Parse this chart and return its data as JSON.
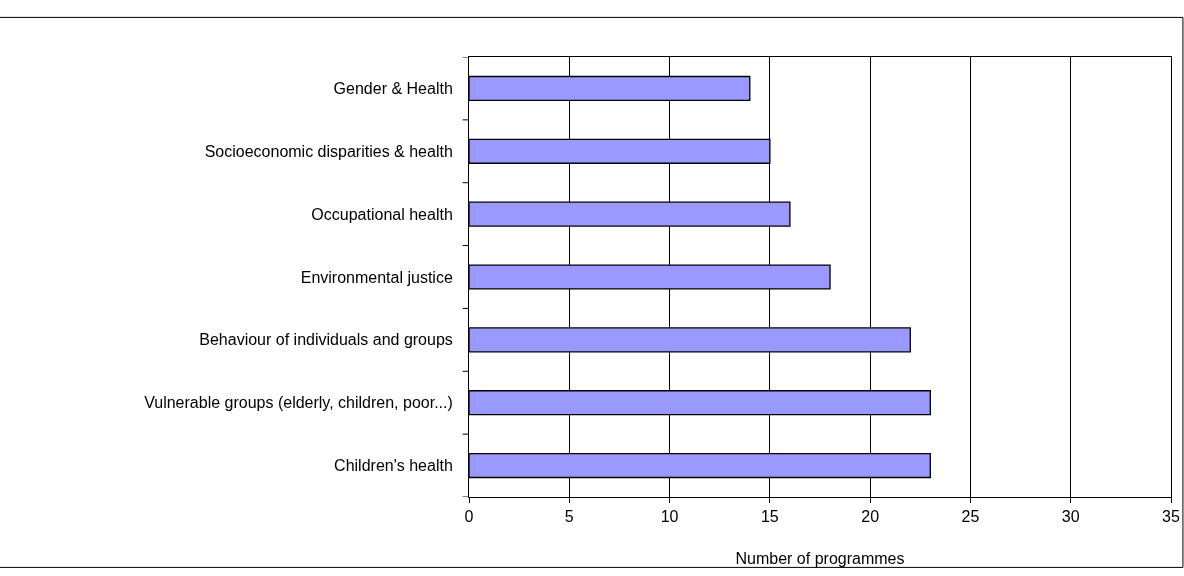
{
  "chart_data": {
    "type": "bar",
    "orientation": "horizontal",
    "categories": [
      "Gender & Health",
      "Socioeconomic disparities & health",
      "Occupational health",
      "Environmental justice",
      "Behaviour of individuals and groups",
      "Vulnerable groups (elderly, children, poor...)",
      "Children's health"
    ],
    "values": [
      14,
      15,
      16,
      18,
      22,
      23,
      23
    ],
    "color": "#9999ff",
    "xlabel": "Number of programmes",
    "xlim": [
      0,
      35
    ],
    "xticks": [
      0,
      5,
      10,
      15,
      20,
      25,
      30,
      35
    ],
    "grid": "x"
  }
}
